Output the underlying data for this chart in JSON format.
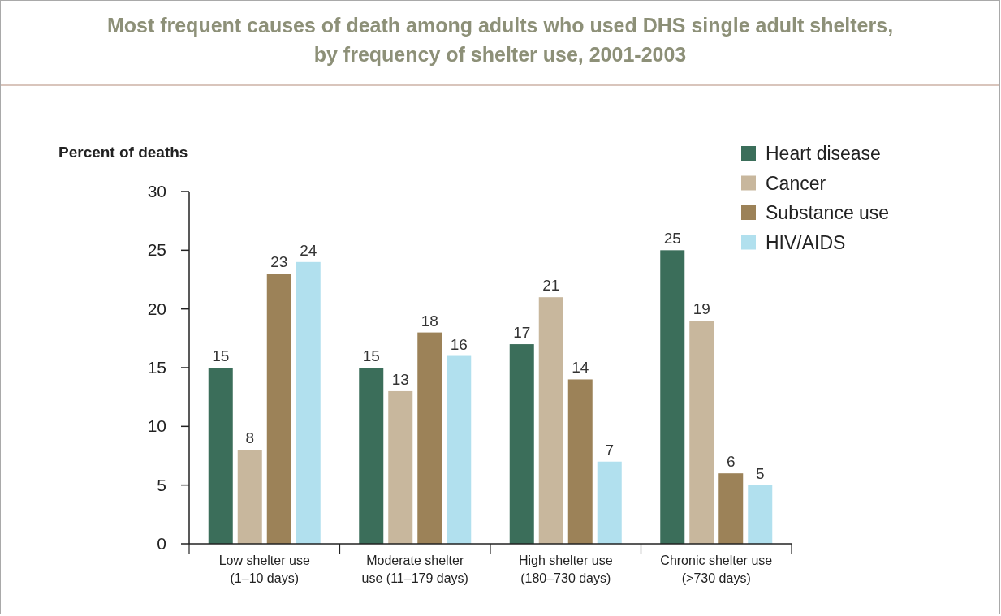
{
  "chart_data": {
    "type": "bar",
    "title": "Most frequent causes of death among adults who used DHS single adult shelters,\nby frequency of shelter use, 2001-2003",
    "ylabel": "Percent of deaths",
    "categories": [
      "Low shelter use\n(1–10 days)",
      "Moderate shelter\nuse (11–179 days)",
      "High shelter use\n(180–730 days)",
      "Chronic shelter use\n(>730 days)"
    ],
    "series": [
      {
        "name": "Heart disease",
        "color": "#3b6e5a",
        "values": [
          15,
          15,
          17,
          25
        ]
      },
      {
        "name": "Cancer",
        "color": "#c8b79d",
        "values": [
          8,
          13,
          21,
          19
        ]
      },
      {
        "name": "Substance use",
        "color": "#9c8258",
        "values": [
          23,
          18,
          14,
          6
        ]
      },
      {
        "name": "HIV/AIDS",
        "color": "#b1e0ee",
        "values": [
          24,
          16,
          7,
          5
        ]
      }
    ],
    "ylim": [
      0,
      30
    ],
    "yticks": [
      0,
      5,
      10,
      15,
      20,
      25,
      30
    ],
    "data_labels": true,
    "legend": "top right",
    "grid": false
  }
}
